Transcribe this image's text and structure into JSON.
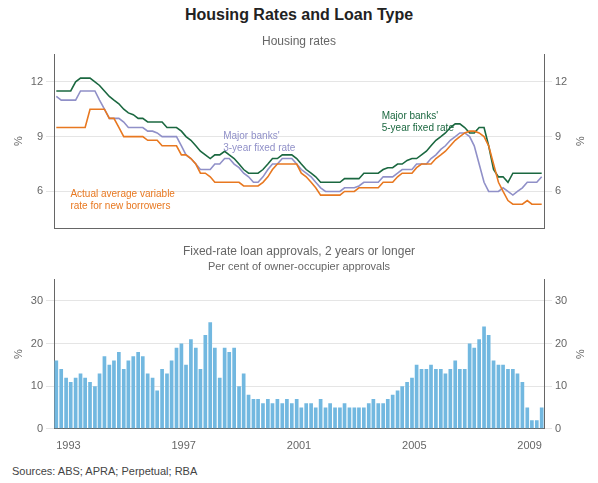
{
  "title": "Housing Rates and Loan Type",
  "note": "Sources: ABS; APRA; Perpetual; RBA",
  "chart_data": [
    {
      "type": "line",
      "title": "Housing rates",
      "x": [
        1992.58,
        1992.75,
        1992.92,
        1993.08,
        1993.25,
        1993.42,
        1993.58,
        1993.75,
        1993.92,
        1994.08,
        1994.25,
        1994.42,
        1994.58,
        1994.75,
        1994.92,
        1995.08,
        1995.25,
        1995.42,
        1995.58,
        1995.75,
        1995.92,
        1996.08,
        1996.25,
        1996.42,
        1996.58,
        1996.75,
        1996.92,
        1997.08,
        1997.25,
        1997.42,
        1997.58,
        1997.75,
        1997.92,
        1998.08,
        1998.25,
        1998.42,
        1998.58,
        1998.75,
        1998.92,
        1999.08,
        1999.25,
        1999.42,
        1999.58,
        1999.75,
        1999.92,
        2000.08,
        2000.25,
        2000.42,
        2000.58,
        2000.75,
        2000.92,
        2001.08,
        2001.25,
        2001.42,
        2001.58,
        2001.75,
        2001.92,
        2002.08,
        2002.25,
        2002.42,
        2002.58,
        2002.75,
        2002.92,
        2003.08,
        2003.25,
        2003.42,
        2003.58,
        2003.75,
        2003.92,
        2004.08,
        2004.25,
        2004.42,
        2004.58,
        2004.75,
        2004.92,
        2005.08,
        2005.25,
        2005.42,
        2005.58,
        2005.75,
        2005.92,
        2006.08,
        2006.25,
        2006.42,
        2006.58,
        2006.75,
        2006.92,
        2007.08,
        2007.25,
        2007.42,
        2007.58,
        2007.75,
        2007.92,
        2008.08,
        2008.25,
        2008.42,
        2008.58,
        2008.75,
        2008.92,
        2009.08,
        2009.25,
        2009.42
      ],
      "series": [
        {
          "color": "#E87820",
          "values": [
            9.5,
            9.5,
            9.5,
            9.5,
            9.5,
            9.5,
            9.5,
            10.5,
            10.5,
            10.5,
            10.5,
            10.0,
            10.0,
            9.5,
            9.0,
            9.0,
            9.0,
            9.0,
            9.0,
            8.8,
            8.8,
            8.8,
            8.5,
            8.5,
            8.5,
            8.5,
            8.0,
            8.0,
            7.8,
            7.5,
            7.0,
            7.0,
            6.8,
            6.5,
            6.5,
            6.5,
            6.5,
            6.5,
            6.5,
            6.3,
            6.3,
            6.3,
            6.3,
            6.5,
            6.8,
            7.2,
            7.5,
            7.5,
            7.5,
            7.5,
            7.5,
            7.0,
            6.8,
            6.5,
            6.2,
            5.8,
            5.8,
            5.8,
            5.8,
            5.8,
            6.0,
            6.0,
            6.0,
            6.2,
            6.2,
            6.2,
            6.2,
            6.2,
            6.5,
            6.5,
            6.5,
            6.8,
            7.0,
            7.0,
            7.0,
            7.3,
            7.5,
            7.5,
            7.5,
            7.8,
            8.0,
            8.2,
            8.5,
            8.8,
            9.0,
            9.2,
            9.3,
            9.3,
            9.2,
            9.0,
            8.5,
            7.5,
            6.5,
            6.0,
            5.5,
            5.3,
            5.3,
            5.3,
            5.5,
            5.3,
            5.3,
            5.3
          ]
        },
        {
          "color": "#9090C8",
          "values": [
            11.2,
            11.0,
            11.0,
            11.0,
            11.0,
            11.5,
            11.5,
            11.5,
            11.5,
            11.0,
            10.5,
            10.0,
            10.0,
            10.0,
            9.8,
            9.5,
            9.5,
            9.5,
            9.5,
            9.3,
            9.3,
            9.2,
            9.0,
            9.0,
            9.0,
            9.0,
            8.5,
            8.0,
            7.8,
            7.5,
            7.2,
            7.2,
            7.2,
            7.5,
            7.5,
            7.8,
            7.8,
            7.5,
            7.3,
            7.0,
            6.8,
            6.5,
            6.5,
            6.8,
            7.2,
            7.5,
            7.5,
            7.8,
            7.8,
            7.8,
            7.5,
            7.2,
            7.0,
            6.8,
            6.5,
            6.2,
            6.0,
            6.0,
            6.0,
            6.0,
            6.2,
            6.2,
            6.2,
            6.3,
            6.5,
            6.5,
            6.5,
            6.5,
            6.8,
            6.8,
            6.8,
            7.0,
            7.2,
            7.2,
            7.2,
            7.5,
            7.5,
            7.5,
            7.8,
            8.0,
            8.3,
            8.5,
            8.8,
            9.0,
            9.2,
            9.2,
            9.0,
            8.5,
            7.5,
            6.5,
            6.0,
            6.0,
            6.0,
            6.2,
            6.0,
            5.8,
            6.0,
            6.2,
            6.5,
            6.5,
            6.5,
            6.8
          ]
        },
        {
          "color": "#1B6840",
          "values": [
            11.5,
            11.5,
            11.5,
            11.5,
            12.0,
            12.2,
            12.2,
            12.2,
            12.0,
            11.8,
            11.5,
            11.2,
            11.0,
            10.8,
            10.5,
            10.3,
            10.2,
            10.0,
            10.0,
            9.8,
            9.8,
            9.8,
            9.8,
            9.5,
            9.5,
            9.5,
            9.3,
            9.0,
            8.8,
            8.5,
            8.2,
            8.0,
            7.8,
            8.0,
            8.0,
            8.2,
            8.0,
            7.8,
            7.5,
            7.2,
            7.0,
            7.0,
            7.0,
            7.2,
            7.5,
            7.8,
            7.8,
            8.0,
            8.0,
            8.0,
            7.8,
            7.5,
            7.2,
            7.0,
            6.8,
            6.5,
            6.5,
            6.5,
            6.5,
            6.5,
            6.7,
            6.7,
            6.7,
            6.7,
            7.0,
            7.0,
            7.0,
            7.0,
            7.2,
            7.3,
            7.3,
            7.5,
            7.5,
            7.7,
            7.8,
            7.8,
            8.0,
            8.2,
            8.5,
            8.8,
            9.0,
            9.2,
            9.5,
            9.7,
            9.7,
            9.5,
            9.2,
            9.2,
            9.5,
            9.5,
            8.5,
            7.2,
            6.8,
            6.8,
            6.5,
            7.0,
            7.0,
            7.0,
            7.0,
            7.0,
            7.0,
            7.0
          ]
        }
      ],
      "xlim": [
        1992.5,
        2009.5
      ],
      "ylim": [
        4.0,
        13.5
      ],
      "yticks": [
        6,
        9,
        12
      ],
      "y2lim": [
        4.0,
        13.5
      ],
      "y2ticks": [
        6,
        9,
        12
      ],
      "ylabel": "%",
      "y2label": "%",
      "tick_labels": "y",
      "grid": true,
      "annotations": [
        {
          "text": "Actual average variable\nrate for new borrowers",
          "x": 1993.0,
          "y": 5.5,
          "color": "#E87820"
        },
        {
          "text": "Major banks'\n3-year fixed rate",
          "x": 1998.3,
          "y": 8.7,
          "color": "#9090C8"
        },
        {
          "text": "Major banks'\n5-year fixed rate",
          "x": 2003.8,
          "y": 9.8,
          "color": "#1B6840"
        }
      ]
    },
    {
      "type": "bar",
      "title": "Fixed-rate loan approvals, 2 years or longer",
      "subtitle": "Per cent of owner-occupier approvals",
      "x": [
        1992.58,
        1992.75,
        1992.92,
        1993.08,
        1993.25,
        1993.42,
        1993.58,
        1993.75,
        1993.92,
        1994.08,
        1994.25,
        1994.42,
        1994.58,
        1994.75,
        1994.92,
        1995.08,
        1995.25,
        1995.42,
        1995.58,
        1995.75,
        1995.92,
        1996.08,
        1996.25,
        1996.42,
        1996.58,
        1996.75,
        1996.92,
        1997.08,
        1997.25,
        1997.42,
        1997.58,
        1997.75,
        1997.92,
        1998.08,
        1998.25,
        1998.42,
        1998.58,
        1998.75,
        1998.92,
        1999.08,
        1999.25,
        1999.42,
        1999.58,
        1999.75,
        1999.92,
        2000.08,
        2000.25,
        2000.42,
        2000.58,
        2000.75,
        2000.92,
        2001.08,
        2001.25,
        2001.42,
        2001.58,
        2001.75,
        2001.92,
        2002.08,
        2002.25,
        2002.42,
        2002.58,
        2002.75,
        2002.92,
        2003.08,
        2003.25,
        2003.42,
        2003.58,
        2003.75,
        2003.92,
        2004.08,
        2004.25,
        2004.42,
        2004.58,
        2004.75,
        2004.92,
        2005.08,
        2005.25,
        2005.42,
        2005.58,
        2005.75,
        2005.92,
        2006.08,
        2006.25,
        2006.42,
        2006.58,
        2006.75,
        2006.92,
        2007.08,
        2007.25,
        2007.42,
        2007.58,
        2007.75,
        2007.92,
        2008.08,
        2008.25,
        2008.42,
        2008.58,
        2008.75,
        2008.92,
        2009.08,
        2009.25,
        2009.42
      ],
      "values": [
        16,
        14,
        12,
        11,
        12,
        13,
        12,
        11,
        10,
        13,
        17,
        15,
        16,
        18,
        14,
        16,
        17,
        18,
        17,
        13,
        12,
        9,
        14,
        13,
        16,
        19,
        20,
        15,
        21,
        19,
        14,
        22,
        25,
        19,
        12,
        19,
        18,
        19,
        10,
        13,
        8,
        7,
        7,
        6,
        7,
        6,
        7,
        6,
        7,
        6,
        7,
        5,
        6,
        6,
        5,
        7,
        5,
        6,
        5,
        5,
        6,
        5,
        5,
        5,
        5,
        6,
        7,
        6,
        6,
        7,
        8,
        9,
        10,
        11,
        12,
        15,
        14,
        14,
        15,
        14,
        14,
        13,
        14,
        16,
        14,
        14,
        20,
        19,
        21,
        24,
        22,
        16,
        15,
        15,
        14,
        14,
        13,
        11,
        5,
        2,
        2,
        5
      ],
      "color": "#72B8E0",
      "xlim": [
        1992.5,
        2009.5
      ],
      "xticks": [
        1993,
        1997,
        2001,
        2005,
        2009
      ],
      "ylim": [
        0,
        35
      ],
      "yticks": [
        0,
        10,
        20,
        30
      ],
      "y2lim": [
        0,
        35
      ],
      "y2ticks": [
        0,
        10,
        20,
        30
      ],
      "ylabel": "%",
      "y2label": "%",
      "grid": true
    }
  ]
}
